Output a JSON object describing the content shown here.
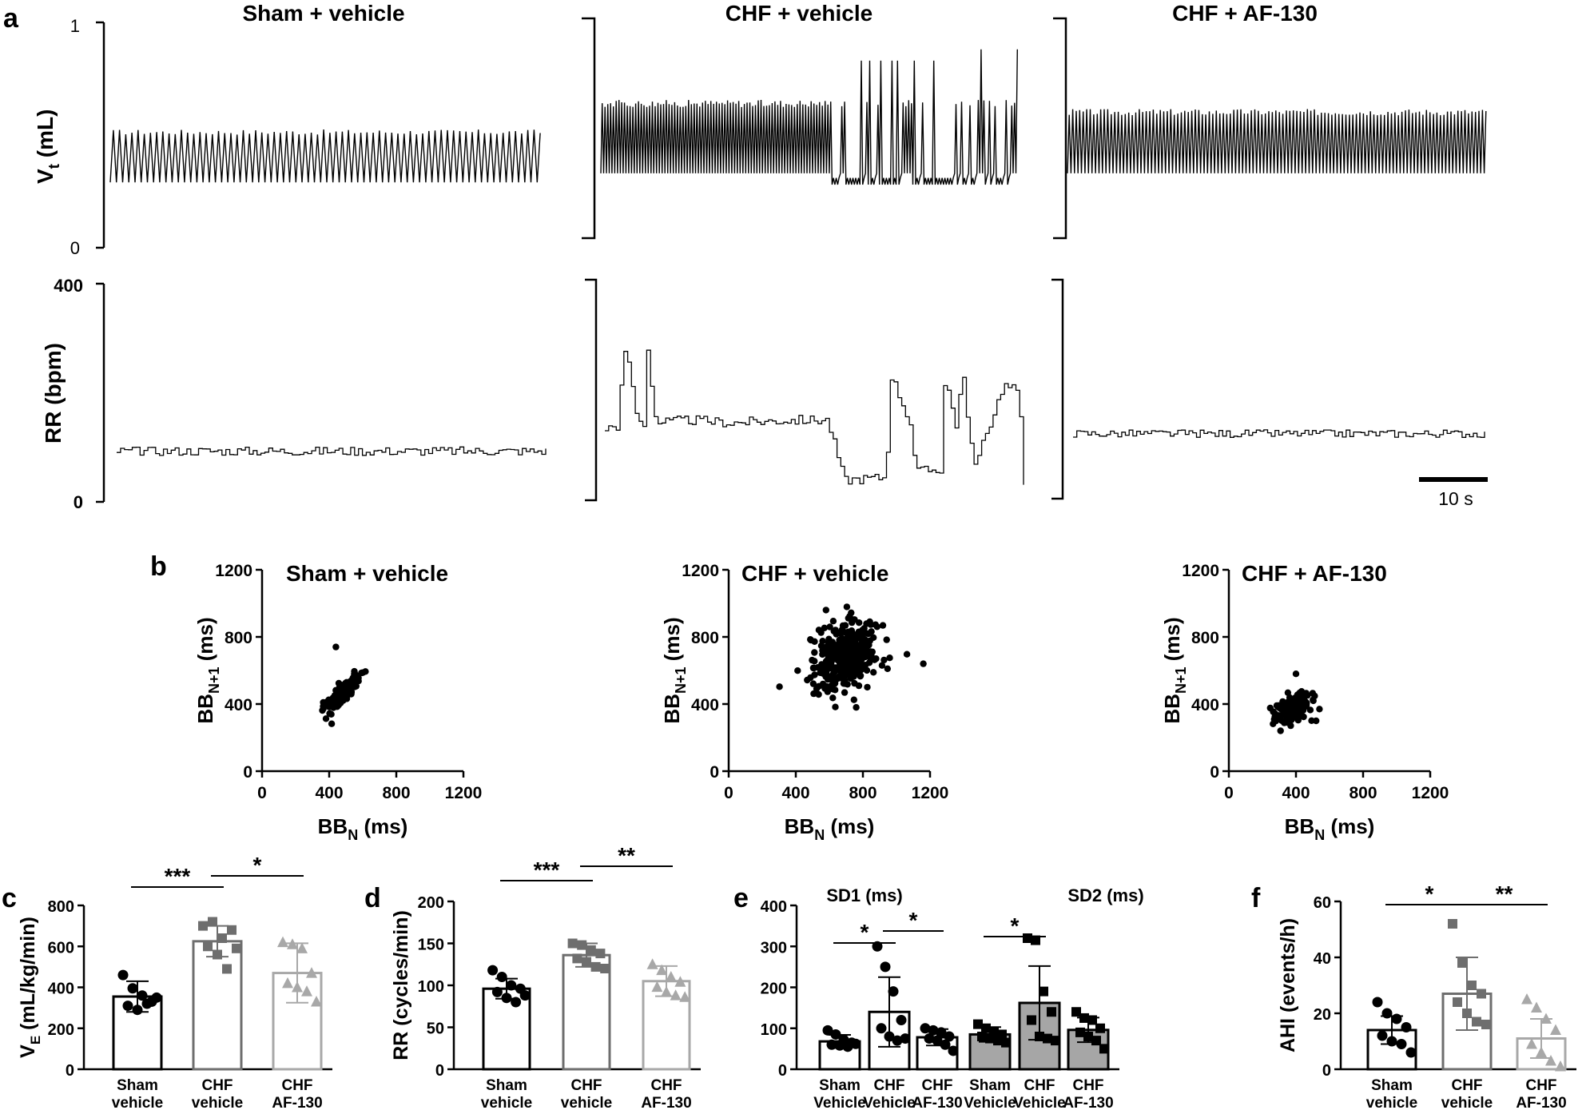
{
  "panels": {
    "a": "a",
    "b": "b",
    "c": "c",
    "d": "d",
    "e": "e",
    "f": "f"
  },
  "groups": [
    "Sham + vehicle",
    "CHF + vehicle",
    "CHF + AF-130"
  ],
  "colors": {
    "sham": "#000000",
    "chf": "#6e6e6e",
    "af": "#a8a8a8",
    "sd2_fill": "#a6a6a6"
  },
  "chart_data": [
    {
      "id": "a-vt",
      "type": "line",
      "ylabel_main": "V",
      "ylabel_sub": "t",
      "ylabel_unit": " (mL)",
      "ylim": [
        0,
        1
      ],
      "yticks": [
        0,
        1
      ],
      "traces": [
        {
          "name": "Sham + vehicle",
          "baseline": 0.29,
          "amplitude": 0.23,
          "cycles": 70
        },
        {
          "name": "CHF + vehicle",
          "baseline": 0.33,
          "amplitude": 0.32,
          "cycles": 150,
          "irregular": true
        },
        {
          "name": "CHF + AF-130",
          "baseline": 0.33,
          "amplitude": 0.28,
          "cycles": 120
        }
      ]
    },
    {
      "id": "a-rr",
      "type": "line",
      "ylabel": "RR (bpm)",
      "ylim": [
        0,
        400
      ],
      "yticks": [
        0,
        400
      ],
      "scalebar": "10 s",
      "traces": [
        {
          "name": "Sham + vehicle",
          "mean": 93,
          "noise": 8
        },
        {
          "name": "CHF + vehicle",
          "profile": [
            [
              0,
              135
            ],
            [
              0.03,
              140
            ],
            [
              0.04,
              250
            ],
            [
              0.05,
              285
            ],
            [
              0.07,
              170
            ],
            [
              0.09,
              130
            ],
            [
              0.1,
              280
            ],
            [
              0.12,
              145
            ],
            [
              0.2,
              150
            ],
            [
              0.3,
              145
            ],
            [
              0.45,
              150
            ],
            [
              0.53,
              150
            ],
            [
              0.57,
              40
            ],
            [
              0.67,
              45
            ],
            [
              0.68,
              235
            ],
            [
              0.73,
              140
            ],
            [
              0.74,
              55
            ],
            [
              0.8,
              60
            ],
            [
              0.81,
              230
            ],
            [
              0.84,
              130
            ],
            [
              0.85,
              250
            ],
            [
              0.88,
              60
            ],
            [
              0.95,
              215
            ],
            [
              0.98,
              205
            ],
            [
              0.99,
              170
            ],
            [
              1.0,
              40
            ]
          ]
        },
        {
          "name": "CHF + AF-130",
          "mean": 125,
          "noise": 7
        }
      ]
    },
    {
      "id": "b",
      "type": "scatter",
      "xlabel_main": "BB",
      "xlabel_sub": "N",
      "xlabel_unit": " (ms)",
      "ylabel_main": "BB",
      "ylabel_sub": "N+1",
      "ylabel_unit": " (ms)",
      "xlim": [
        0,
        1200
      ],
      "ylim": [
        0,
        1200
      ],
      "ticks": [
        0,
        400,
        800,
        1200
      ],
      "clouds": [
        {
          "name": "Sham + vehicle",
          "cx": 470,
          "cy": 450,
          "sx": 50,
          "sy": 55,
          "n": 140,
          "corr": 0.85,
          "extra": [
            [
              440,
              740
            ]
          ]
        },
        {
          "name": "CHF + vehicle",
          "cx": 690,
          "cy": 680,
          "sx": 95,
          "sy": 95,
          "n": 380,
          "corr": 0.35,
          "extra": [
            [
              1160,
              640
            ],
            [
              580,
              960
            ],
            [
              760,
              380
            ]
          ]
        },
        {
          "name": "CHF + AF-130",
          "cx": 380,
          "cy": 370,
          "sx": 55,
          "sy": 45,
          "n": 150,
          "corr": 0.3,
          "extra": [
            [
              540,
              370
            ],
            [
              520,
              300
            ],
            [
              400,
              580
            ]
          ]
        }
      ]
    },
    {
      "id": "c",
      "type": "bar",
      "ylabel_main": "V",
      "ylabel_sub": "E",
      "ylabel_unit": " (mL/kg/min)",
      "ylim": [
        0,
        800
      ],
      "yticks": [
        0,
        200,
        400,
        600,
        800
      ],
      "categories": [
        [
          "Sham",
          "vehicle"
        ],
        [
          "CHF",
          "vehicle"
        ],
        [
          "CHF",
          "AF-130"
        ]
      ],
      "values": [
        355,
        625,
        470
      ],
      "errors": [
        75,
        75,
        145
      ],
      "points": [
        [
          460,
          395,
          360,
          330,
          310,
          290,
          320,
          350
        ],
        [
          700,
          720,
          640,
          680,
          600,
          560,
          490,
          590
        ],
        [
          620,
          610,
          590,
          470,
          420,
          400,
          380,
          330
        ]
      ],
      "markers": [
        "circle",
        "square",
        "triangle"
      ],
      "sig": [
        {
          "from": 0,
          "to": 1,
          "label": "***"
        },
        {
          "from": 1,
          "to": 2,
          "label": "*"
        }
      ]
    },
    {
      "id": "d",
      "type": "bar",
      "ylabel": "RR (cycles/min)",
      "ylim": [
        0,
        200
      ],
      "yticks": [
        0,
        50,
        100,
        150,
        200
      ],
      "categories": [
        [
          "Sham",
          "vehicle"
        ],
        [
          "CHF",
          "vehicle"
        ],
        [
          "CHF",
          "AF-130"
        ]
      ],
      "values": [
        96,
        136,
        105
      ],
      "errors": [
        12,
        14,
        18
      ],
      "points": [
        [
          118,
          110,
          100,
          96,
          92,
          85,
          80,
          88
        ],
        [
          150,
          148,
          142,
          138,
          132,
          128,
          122,
          120
        ],
        [
          125,
          118,
          110,
          104,
          98,
          92,
          88,
          86
        ]
      ],
      "markers": [
        "circle",
        "square",
        "triangle"
      ],
      "sig": [
        {
          "from": 0,
          "to": 1,
          "label": "***"
        },
        {
          "from": 1,
          "to": 2,
          "label": "**"
        }
      ]
    },
    {
      "id": "e",
      "type": "bar",
      "ylim": [
        0,
        400
      ],
      "yticks": [
        0,
        100,
        200,
        300,
        400
      ],
      "subtitles": [
        "SD1 (ms)",
        "SD2 (ms)"
      ],
      "categories": [
        [
          "Sham",
          "Vehicle"
        ],
        [
          "CHF",
          "Vehicle"
        ],
        [
          "CHF",
          "AF-130"
        ],
        [
          "Sham",
          "Vehicle"
        ],
        [
          "CHF",
          "Vehicle"
        ],
        [
          "CHF",
          "AF-130"
        ]
      ],
      "values": [
        68,
        140,
        78,
        85,
        162,
        96
      ],
      "errors": [
        16,
        85,
        20,
        18,
        90,
        30
      ],
      "points": [
        [
          95,
          85,
          72,
          65,
          60,
          58,
          55,
          62
        ],
        [
          300,
          250,
          190,
          120,
          100,
          80,
          70,
          75
        ],
        [
          100,
          95,
          90,
          80,
          75,
          70,
          60,
          45
        ],
        [
          110,
          100,
          90,
          85,
          80,
          75,
          70,
          65
        ],
        [
          320,
          315,
          190,
          140,
          120,
          80,
          75,
          70
        ],
        [
          140,
          125,
          120,
          100,
          90,
          80,
          70,
          50
        ]
      ],
      "markers": [
        "circle",
        "circle",
        "circle",
        "square",
        "square",
        "square"
      ],
      "sig": [
        {
          "from": 0,
          "to": 1,
          "label": "*"
        },
        {
          "from": 1,
          "to": 2,
          "label": "*"
        },
        {
          "from": 3,
          "to": 4,
          "label": "*"
        }
      ]
    },
    {
      "id": "f",
      "type": "bar",
      "ylabel": "AHI (events/h)",
      "ylim": [
        0,
        60
      ],
      "yticks": [
        0,
        20,
        40,
        60
      ],
      "categories": [
        [
          "Sham",
          "vehicle"
        ],
        [
          "CHF",
          "vehicle"
        ],
        [
          "CHF",
          "AF-130"
        ]
      ],
      "values": [
        14,
        27,
        11
      ],
      "errors": [
        5,
        13,
        7
      ],
      "points": [
        [
          24,
          20,
          18,
          15,
          12,
          10,
          9,
          6
        ],
        [
          52,
          38,
          30,
          27,
          24,
          20,
          17,
          16
        ],
        [
          25,
          22,
          18,
          14,
          9,
          6,
          3,
          1
        ]
      ],
      "markers": [
        "circle",
        "square",
        "triangle"
      ],
      "sig": [
        {
          "from": 0,
          "to": 1,
          "label": "*"
        },
        {
          "from": 1,
          "to": 2,
          "label": "**"
        }
      ]
    }
  ]
}
